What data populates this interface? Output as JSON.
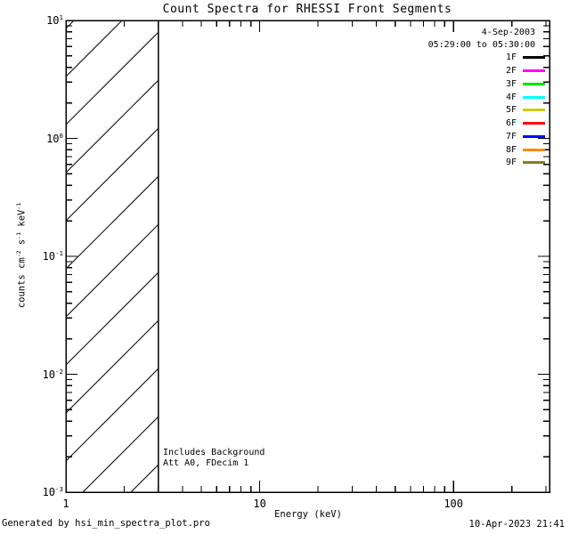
{
  "title": "Count Spectra for RHESSI Front Segments",
  "legend": {
    "date": "4-Sep-2003",
    "time_range": "05:29:00 to 05:30:00",
    "entries": [
      {
        "label": "1F",
        "color": "#000000"
      },
      {
        "label": "2F",
        "color": "#ff00ff"
      },
      {
        "label": "3F",
        "color": "#00e400"
      },
      {
        "label": "4F",
        "color": "#00ffff"
      },
      {
        "label": "5F",
        "color": "#d2ca00"
      },
      {
        "label": "6F",
        "color": "#ff0000"
      },
      {
        "label": "7F",
        "color": "#0000ff"
      },
      {
        "label": "8F",
        "color": "#ff8a00"
      },
      {
        "label": "9F",
        "color": "#8a7d1e"
      }
    ]
  },
  "annotations": [
    "Includes Background",
    "Att A0, FDecim 1"
  ],
  "footer": {
    "left": "Generated by hsi_min_spectra_plot.pro",
    "right": "10-Apr-2023 21:41"
  },
  "chart_data": {
    "type": "line",
    "title": "Count Spectra for RHESSI Front Segments",
    "xlabel": "Energy (keV)",
    "ylabel": "counts cm^-2 s^-1 keV^-1",
    "x_scale": "log",
    "y_scale": "log",
    "xlim": [
      1,
      313
    ],
    "ylim": [
      0.001,
      10
    ],
    "x_ticks": [
      1,
      10,
      100
    ],
    "y_ticks": [
      10,
      1,
      0.1,
      0.01,
      0.001
    ],
    "grid": false,
    "legend_position": "upper right",
    "plot_area_empty": true,
    "hatched_region": {
      "x_min": 1,
      "x_max": 3,
      "style": "diagonal-hatch"
    },
    "series": [
      {
        "name": "1F",
        "color": "#000000",
        "values": []
      },
      {
        "name": "2F",
        "color": "#ff00ff",
        "values": []
      },
      {
        "name": "3F",
        "color": "#00e400",
        "values": []
      },
      {
        "name": "4F",
        "color": "#00ffff",
        "values": []
      },
      {
        "name": "5F",
        "color": "#d2ca00",
        "values": []
      },
      {
        "name": "6F",
        "color": "#ff0000",
        "values": []
      },
      {
        "name": "7F",
        "color": "#0000ff",
        "values": []
      },
      {
        "name": "8F",
        "color": "#ff8a00",
        "values": []
      },
      {
        "name": "9F",
        "color": "#8a7d1e",
        "values": []
      }
    ]
  }
}
